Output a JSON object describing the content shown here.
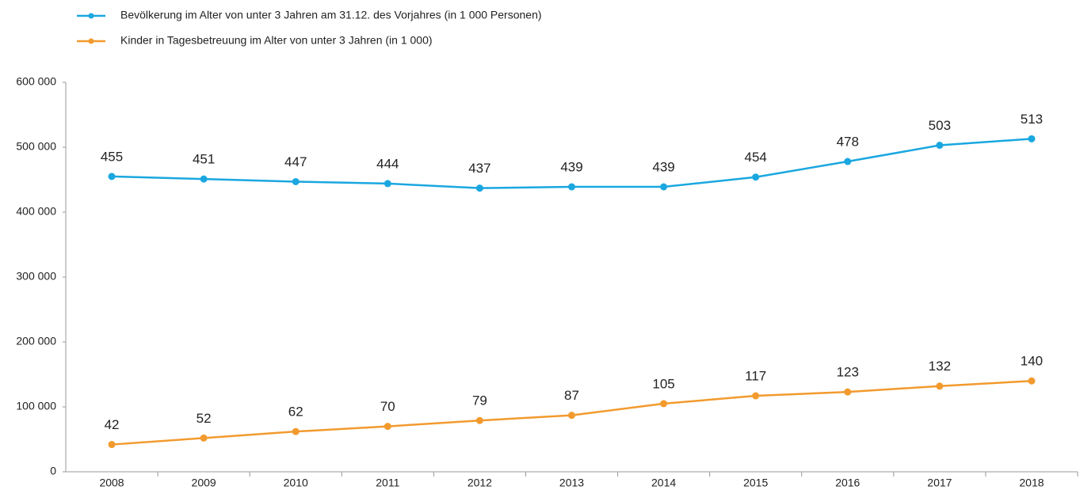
{
  "chart_data": {
    "type": "line",
    "categories": [
      "2008",
      "2009",
      "2010",
      "2011",
      "2012",
      "2013",
      "2014",
      "2015",
      "2016",
      "2017",
      "2018"
    ],
    "series": [
      {
        "name": "Bevölkerung im Alter von unter 3 Jahren am 31.12. des Vorjahres (in 1 000 Personen)",
        "color": "#1aa7e0",
        "values": [
          455000,
          451000,
          447000,
          444000,
          437000,
          439000,
          439000,
          454000,
          478000,
          503000,
          513000
        ],
        "value_labels": [
          "455",
          "451",
          "447",
          "444",
          "437",
          "439",
          "439",
          "454",
          "478",
          "503",
          "513"
        ]
      },
      {
        "name": "Kinder in Tagesbetreuung im Alter von unter 3 Jahren (in 1 000)",
        "color": "#f29a2e",
        "values": [
          42000,
          52000,
          62000,
          70000,
          79000,
          87000,
          105000,
          117000,
          123000,
          132000,
          140000
        ],
        "value_labels": [
          "42",
          "52",
          "62",
          "70",
          "79",
          "87",
          "105",
          "117",
          "123",
          "132",
          "140"
        ]
      }
    ],
    "ylim": [
      0,
      600000
    ],
    "yticks": [
      0,
      {
        "value": 100000,
        "label": "100 000"
      },
      {
        "value": 200000,
        "label": "200 000"
      },
      {
        "value": 300000,
        "label": "300 000"
      },
      {
        "value": 400000,
        "label": "400 000"
      },
      {
        "value": 500000,
        "label": "500 000"
      },
      {
        "value": 600000,
        "label": "600 000"
      }
    ],
    "legend": "top-left",
    "grid": false
  }
}
